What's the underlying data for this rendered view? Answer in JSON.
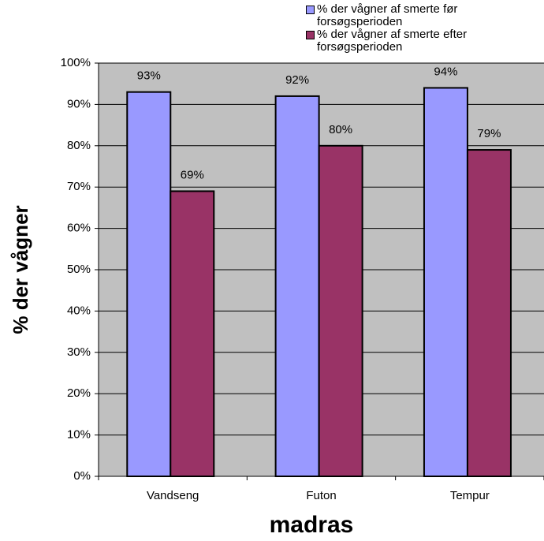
{
  "chart_data": {
    "type": "bar",
    "categories": [
      "Vandseng",
      "Futon",
      "Tempur"
    ],
    "series": [
      {
        "name": "% der vågner af smerte før forsøgsperioden",
        "color": "#9999ff",
        "values": [
          93,
          92,
          94
        ],
        "value_labels": [
          "93%",
          "92%",
          "94%"
        ]
      },
      {
        "name": "% der vågner af smerte efter forsøgsperioden",
        "color": "#993366",
        "values": [
          69,
          80,
          79
        ],
        "value_labels": [
          "69%",
          "80%",
          "79%"
        ]
      }
    ],
    "xlabel": "madras",
    "ylabel": "% der vågner",
    "ylim": [
      0,
      100
    ],
    "yticks": [
      {
        "value": 0,
        "label": "0%"
      },
      {
        "value": 10,
        "label": "10%"
      },
      {
        "value": 20,
        "label": "20%"
      },
      {
        "value": 30,
        "label": "30%"
      },
      {
        "value": 40,
        "label": "40%"
      },
      {
        "value": 50,
        "label": "50%"
      },
      {
        "value": 60,
        "label": "60%"
      },
      {
        "value": 70,
        "label": "70%"
      },
      {
        "value": 80,
        "label": "80%"
      },
      {
        "value": 90,
        "label": "90%"
      },
      {
        "value": 100,
        "label": "100%"
      }
    ],
    "grid": true,
    "legend": "top-right"
  }
}
